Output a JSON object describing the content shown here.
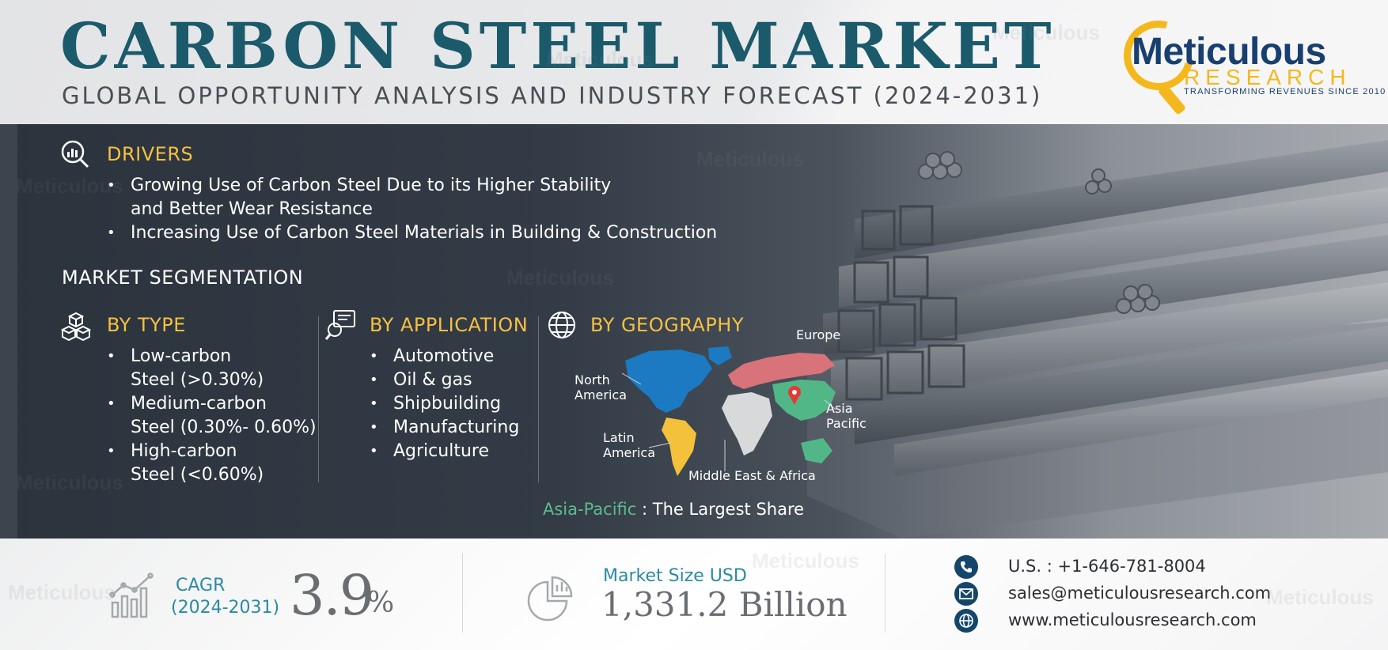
{
  "header": {
    "title": "CARBON STEEL MARKET",
    "subtitle": "GLOBAL OPPORTUNITY ANALYSIS AND INDUSTRY FORECAST (2024-2031)"
  },
  "logo": {
    "name": "Meticulous",
    "sub": "RESEARCH",
    "tagline": "TRANSFORMING REVENUES SINCE 2010"
  },
  "drivers": {
    "heading": "DRIVERS",
    "items": [
      "Growing Use of Carbon Steel Due to its Higher Stability",
      "and Better Wear Resistance",
      "Increasing Use of Carbon Steel Materials in Building & Construction"
    ]
  },
  "segmentation": {
    "heading": "MARKET SEGMENTATION",
    "by_type": {
      "heading": "BY TYPE",
      "items": [
        {
          "line1": "Low-carbon",
          "line2": "Steel (>0.30%)"
        },
        {
          "line1": "Medium-carbon",
          "line2": "Steel (0.30%- 0.60%)"
        },
        {
          "line1": "High-carbon",
          "line2": "Steel (<0.60%)"
        }
      ]
    },
    "by_application": {
      "heading": "BY APPLICATION",
      "items": [
        "Automotive",
        "Oil & gas",
        "Shipbuilding",
        "Manufacturing",
        "Agriculture"
      ]
    },
    "by_geography": {
      "heading": "BY GEOGRAPHY",
      "regions": {
        "europe": "Europe",
        "north_america_1": "North",
        "north_america_2": "America",
        "asia_pacific_1": "Asia",
        "asia_pacific_2": "Pacific",
        "latin_america_1": "Latin",
        "latin_america_2": "America",
        "mea": "Middle East & Africa"
      },
      "largest_region": "Asia-Pacific",
      "largest_text": ": The Largest Share",
      "colors": {
        "north_america": "#1b7ac2",
        "europe": "#d9737a",
        "asia_pacific": "#52b787",
        "latin_america": "#f3c23a",
        "mea": "#d7d9db"
      }
    }
  },
  "footer": {
    "cagr_label": "CAGR",
    "cagr_period": "(2024-2031)",
    "cagr_value": "3.9",
    "cagr_unit": "%",
    "market_size_label": "Market Size USD",
    "market_size_value": "1,331.2 Billion",
    "phone": "U.S. : +1-646-781-8004",
    "email": "sales@meticulousresearch.com",
    "website": "www.meticulousresearch.com"
  },
  "watermark": "Meticulous"
}
